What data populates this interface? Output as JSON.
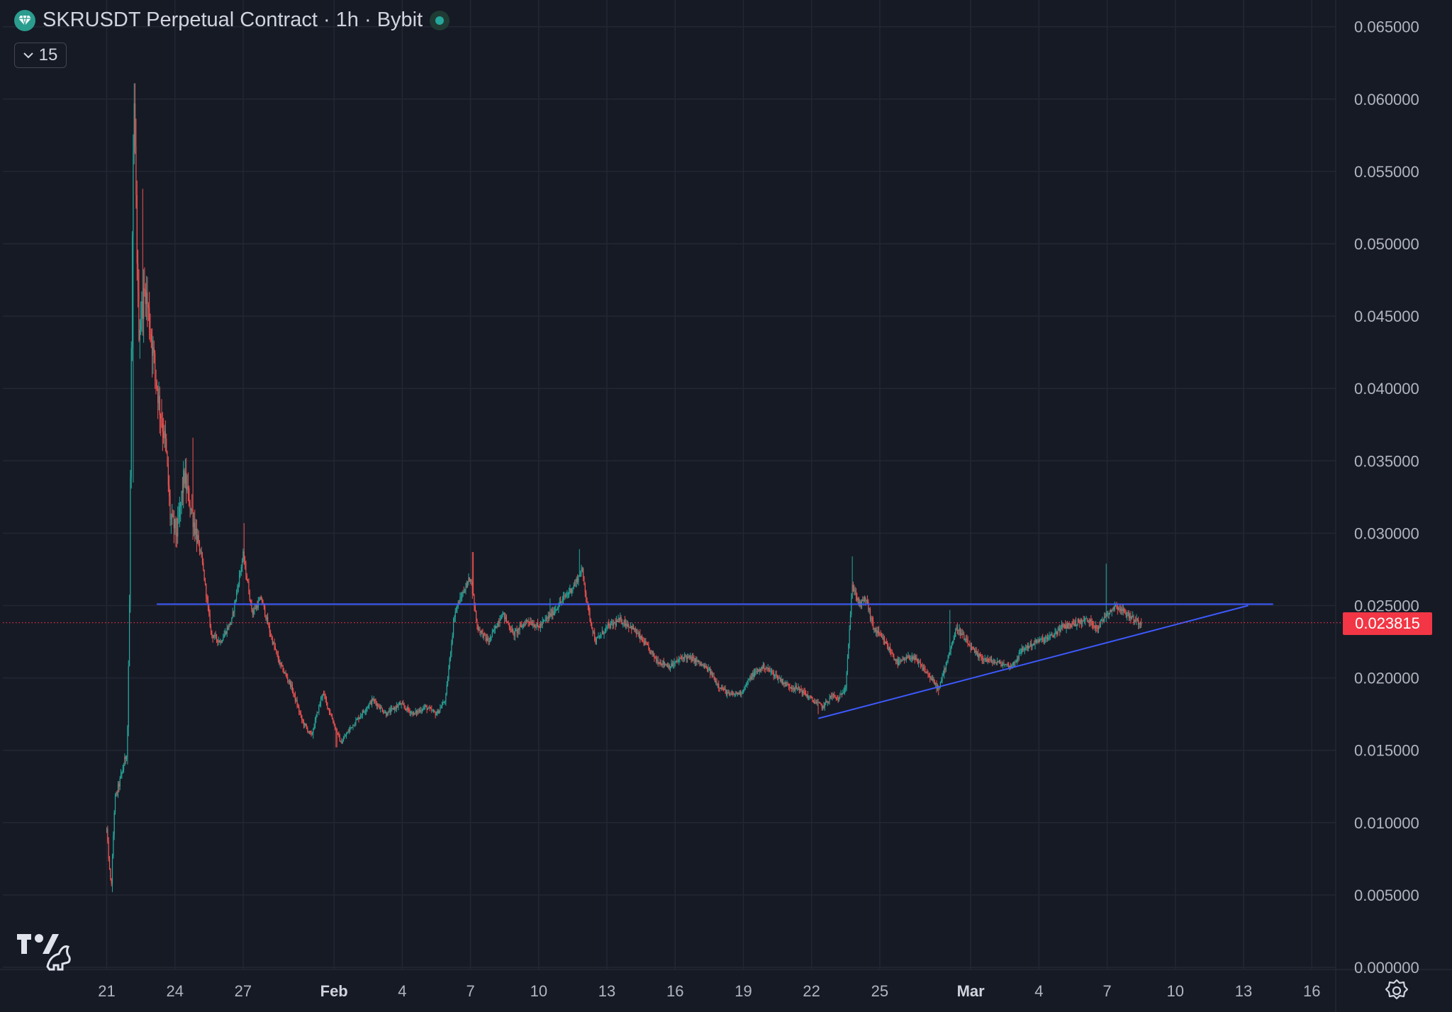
{
  "header": {
    "title": "SKRUSDT Perpetual Contract · 1h · Bybit",
    "collapse_label": "15"
  },
  "icons": {
    "symbol": "diamond-icon",
    "status": "market-open-dot-icon",
    "collapse": "chevron-down-icon",
    "logo": "tradingview-logo-icon",
    "settings": "gear-icon"
  },
  "colors": {
    "background": "#161a25",
    "up": "#26a69a",
    "down": "#ef5350",
    "trendline": "#3d5afe",
    "last_price": "#f23645"
  },
  "last_price": "0.023815",
  "chart_data": {
    "type": "candlestick",
    "title": "SKRUSDT Perpetual Contract · 1h · Bybit",
    "y_axis": {
      "side": "right",
      "range": [
        0,
        0.066
      ],
      "ticks": [
        "0.065000",
        "0.060000",
        "0.055000",
        "0.050000",
        "0.045000",
        "0.040000",
        "0.035000",
        "0.030000",
        "0.025000",
        "0.020000",
        "0.015000",
        "0.010000",
        "0.005000",
        "0.000000"
      ]
    },
    "x_axis": {
      "ticks": [
        {
          "label": "21",
          "pos": 0
        },
        {
          "label": "24",
          "pos": 3
        },
        {
          "label": "27",
          "pos": 6
        },
        {
          "label": "Feb",
          "pos": 10,
          "major": true
        },
        {
          "label": "4",
          "pos": 13
        },
        {
          "label": "7",
          "pos": 16
        },
        {
          "label": "10",
          "pos": 19
        },
        {
          "label": "13",
          "pos": 22
        },
        {
          "label": "16",
          "pos": 25
        },
        {
          "label": "19",
          "pos": 28
        },
        {
          "label": "22",
          "pos": 31
        },
        {
          "label": "25",
          "pos": 34
        },
        {
          "label": "Mar",
          "pos": 38,
          "major": true
        },
        {
          "label": "4",
          "pos": 41
        },
        {
          "label": "7",
          "pos": 44
        },
        {
          "label": "10",
          "pos": 47
        },
        {
          "label": "13",
          "pos": 50
        },
        {
          "label": "16",
          "pos": 53
        }
      ]
    },
    "price_path": [
      [
        0.0,
        0.0095
      ],
      [
        0.12,
        0.0068
      ],
      [
        0.2,
        0.0055
      ],
      [
        0.35,
        0.0115
      ],
      [
        0.6,
        0.013
      ],
      [
        0.9,
        0.015
      ],
      [
        1.0,
        0.025
      ],
      [
        1.1,
        0.046
      ],
      [
        1.2,
        0.06
      ],
      [
        1.4,
        0.044
      ],
      [
        1.7,
        0.047
      ],
      [
        2.0,
        0.043
      ],
      [
        2.3,
        0.039
      ],
      [
        2.6,
        0.036
      ],
      [
        2.8,
        0.031
      ],
      [
        3.1,
        0.03
      ],
      [
        3.4,
        0.034
      ],
      [
        3.8,
        0.031
      ],
      [
        4.2,
        0.028
      ],
      [
        4.6,
        0.023
      ],
      [
        5.0,
        0.0225
      ],
      [
        5.5,
        0.024
      ],
      [
        6.0,
        0.0285
      ],
      [
        6.4,
        0.0245
      ],
      [
        6.8,
        0.0255
      ],
      [
        7.2,
        0.023
      ],
      [
        7.6,
        0.021
      ],
      [
        8.1,
        0.0195
      ],
      [
        8.6,
        0.017
      ],
      [
        9.0,
        0.016
      ],
      [
        9.5,
        0.019
      ],
      [
        10.0,
        0.0168
      ],
      [
        10.3,
        0.0155
      ],
      [
        10.7,
        0.0165
      ],
      [
        11.2,
        0.0175
      ],
      [
        11.7,
        0.0185
      ],
      [
        12.3,
        0.0175
      ],
      [
        12.9,
        0.0182
      ],
      [
        13.5,
        0.0175
      ],
      [
        14.0,
        0.018
      ],
      [
        14.5,
        0.0175
      ],
      [
        14.9,
        0.0185
      ],
      [
        15.3,
        0.0245
      ],
      [
        15.7,
        0.026
      ],
      [
        16.0,
        0.027
      ],
      [
        16.3,
        0.0235
      ],
      [
        16.8,
        0.0225
      ],
      [
        17.4,
        0.0245
      ],
      [
        17.9,
        0.023
      ],
      [
        18.5,
        0.024
      ],
      [
        19.0,
        0.0235
      ],
      [
        19.6,
        0.0245
      ],
      [
        20.1,
        0.0255
      ],
      [
        20.6,
        0.0265
      ],
      [
        20.9,
        0.0275
      ],
      [
        21.2,
        0.0245
      ],
      [
        21.5,
        0.0225
      ],
      [
        22.0,
        0.0235
      ],
      [
        22.6,
        0.024
      ],
      [
        23.1,
        0.0235
      ],
      [
        23.6,
        0.0225
      ],
      [
        24.2,
        0.0212
      ],
      [
        24.8,
        0.0208
      ],
      [
        25.4,
        0.0215
      ],
      [
        25.9,
        0.0212
      ],
      [
        26.5,
        0.0205
      ],
      [
        26.9,
        0.0195
      ],
      [
        27.4,
        0.0188
      ],
      [
        27.9,
        0.019
      ],
      [
        28.4,
        0.0202
      ],
      [
        28.9,
        0.0208
      ],
      [
        29.4,
        0.0202
      ],
      [
        29.9,
        0.0195
      ],
      [
        30.5,
        0.0192
      ],
      [
        31.0,
        0.0185
      ],
      [
        31.5,
        0.018
      ],
      [
        31.9,
        0.0188
      ],
      [
        32.2,
        0.0185
      ],
      [
        32.5,
        0.0195
      ],
      [
        32.8,
        0.0265
      ],
      [
        33.1,
        0.025
      ],
      [
        33.4,
        0.0255
      ],
      [
        33.7,
        0.0235
      ],
      [
        34.2,
        0.0225
      ],
      [
        34.8,
        0.021
      ],
      [
        35.4,
        0.0215
      ],
      [
        36.0,
        0.0205
      ],
      [
        36.6,
        0.0192
      ],
      [
        37.0,
        0.0215
      ],
      [
        37.4,
        0.0235
      ],
      [
        37.8,
        0.0225
      ],
      [
        38.3,
        0.0215
      ],
      [
        38.8,
        0.0212
      ],
      [
        39.3,
        0.021
      ],
      [
        39.8,
        0.0208
      ],
      [
        40.3,
        0.022
      ],
      [
        40.9,
        0.0225
      ],
      [
        41.5,
        0.0228
      ],
      [
        42.0,
        0.0235
      ],
      [
        42.6,
        0.0238
      ],
      [
        43.1,
        0.024
      ],
      [
        43.6,
        0.0235
      ],
      [
        44.0,
        0.0245
      ],
      [
        44.4,
        0.025
      ],
      [
        44.8,
        0.0245
      ],
      [
        45.2,
        0.024
      ],
      [
        45.5,
        0.0238
      ]
    ],
    "spikes": [
      {
        "x": 1.25,
        "high": 0.06
      },
      {
        "x": 1.6,
        "high": 0.0538
      },
      {
        "x": 3.8,
        "high": 0.0366
      },
      {
        "x": 6.05,
        "high": 0.0307
      },
      {
        "x": 16.1,
        "high": 0.0287
      },
      {
        "x": 20.8,
        "high": 0.0289
      },
      {
        "x": 32.8,
        "high": 0.0284
      },
      {
        "x": 43.95,
        "high": 0.0279
      },
      {
        "x": 37.1,
        "high": 0.0247
      },
      {
        "x": 19.5,
        "high": 0.0255
      }
    ],
    "dips": [
      {
        "x": 0.25,
        "low": 0.0052
      },
      {
        "x": 10.1,
        "low": 0.0152
      },
      {
        "x": 9.1,
        "low": 0.0158
      },
      {
        "x": 31.3,
        "low": 0.0175
      },
      {
        "x": 36.6,
        "low": 0.0188
      },
      {
        "x": 1.15,
        "low": 0.0335
      }
    ],
    "annotations": {
      "horizontal_line": {
        "y": 0.0251,
        "x_start": 2.2,
        "x_end": 51.3
      },
      "trendline": {
        "x1": 31.3,
        "y1": 0.0172,
        "x2": 50.2,
        "y2": 0.025
      },
      "last_price_line": {
        "y": 0.023815
      }
    },
    "grid": true
  }
}
